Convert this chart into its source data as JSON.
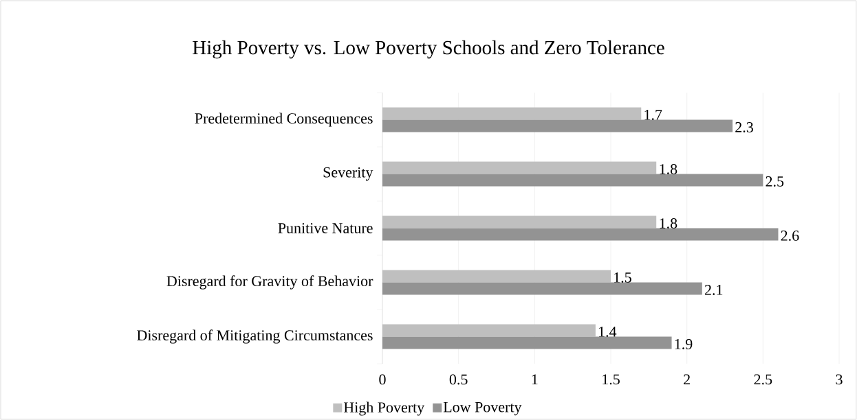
{
  "chart_data": {
    "type": "bar",
    "orientation": "horizontal",
    "title": "High Poverty vs. Low Poverty Schools and Zero Tolerance",
    "categories": [
      "Predetermined Consequences",
      "Severity",
      "Punitive Nature",
      "Disregard for Gravity of Behavior",
      "Disregard of Mitigating Circumstances"
    ],
    "series": [
      {
        "name": "High Poverty",
        "color": "#bfbfbf",
        "values": [
          1.7,
          1.8,
          1.8,
          1.5,
          1.4
        ]
      },
      {
        "name": "Low Poverty",
        "color": "#939393",
        "values": [
          2.3,
          2.5,
          2.6,
          2.1,
          1.9
        ]
      }
    ],
    "xlim": [
      0,
      3
    ],
    "xticks": [
      0,
      0.5,
      1,
      1.5,
      2,
      2.5,
      3
    ],
    "grid": "x",
    "legend": "bottom",
    "data_labels": true
  }
}
